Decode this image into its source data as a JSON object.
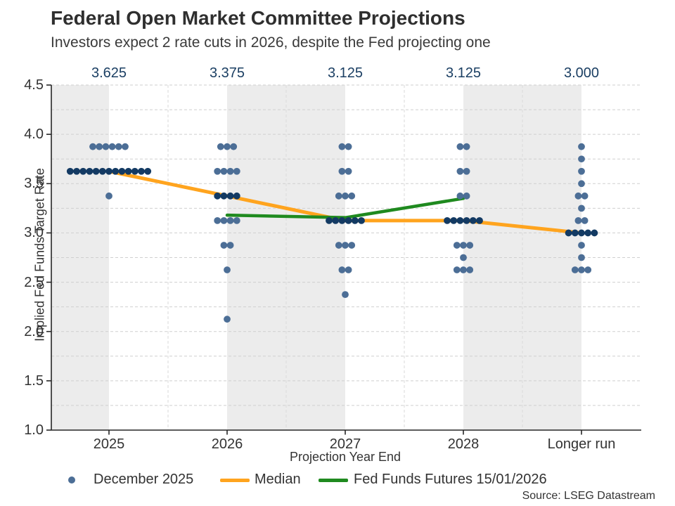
{
  "header": {
    "title": "Federal Open Market Committee Projections",
    "subtitle": "Investors expect 2 rate cuts in 2026, despite the Fed projecting one"
  },
  "source": "Source: LSEG Datastream",
  "colors": {
    "dot": "#4c6e96",
    "dot_median_row": "#133a63",
    "median_line": "#ffa41e",
    "futures_line": "#1f8a1f",
    "top_label_text": "#1b3f63",
    "band": "#ececec",
    "h_grid": "#cfcfcf",
    "v_grid": "#dadada",
    "axis": "#262626"
  },
  "legend": {
    "items": [
      {
        "label": "December 2025",
        "marker": "dot"
      },
      {
        "label": "Median",
        "marker": "line-orange"
      },
      {
        "label": "Fed Funds Futures 15/01/2026",
        "marker": "line-green"
      }
    ]
  },
  "chart_data": {
    "type": "scatter",
    "title": "Federal Open Market Committee Projections",
    "subtitle": "Investors expect 2 rate cuts in 2026, despite the Fed projecting one",
    "xlabel": "Projection Year End",
    "ylabel": "Implied Fed Funds Target Rate",
    "categories": [
      "2025",
      "2026",
      "2027",
      "2028",
      "Longer run"
    ],
    "top_median_labels": [
      "3.625",
      "3.375",
      "3.125",
      "3.125",
      "3.000"
    ],
    "ylim": [
      1.0,
      4.5
    ],
    "yticks": [
      "1.0",
      "1.5",
      "2.0",
      "2.5",
      "3.0",
      "3.5",
      "4.0",
      "4.5"
    ],
    "grid": "horizontal dashed every 0.25; faint vertical dashed at column midpoints; alternating grey column bands",
    "legend_position": "bottom",
    "dot_series_name": "December 2025",
    "dots": [
      {
        "category": "2025",
        "points": [
          {
            "rate": 3.875,
            "count": 6
          },
          {
            "rate": 3.625,
            "count": 13,
            "median": true
          },
          {
            "rate": 3.375,
            "count": 1
          }
        ]
      },
      {
        "category": "2026",
        "points": [
          {
            "rate": 3.875,
            "count": 3
          },
          {
            "rate": 3.625,
            "count": 4
          },
          {
            "rate": 3.375,
            "count": 4,
            "median": true
          },
          {
            "rate": 3.125,
            "count": 4
          },
          {
            "rate": 2.875,
            "count": 2
          },
          {
            "rate": 2.625,
            "count": 1
          },
          {
            "rate": 2.125,
            "count": 1
          }
        ]
      },
      {
        "category": "2027",
        "points": [
          {
            "rate": 3.875,
            "count": 2
          },
          {
            "rate": 3.625,
            "count": 2
          },
          {
            "rate": 3.375,
            "count": 3
          },
          {
            "rate": 3.125,
            "count": 6,
            "median": true
          },
          {
            "rate": 2.875,
            "count": 3
          },
          {
            "rate": 2.625,
            "count": 2
          },
          {
            "rate": 2.375,
            "count": 1
          }
        ]
      },
      {
        "category": "2028",
        "points": [
          {
            "rate": 3.875,
            "count": 2
          },
          {
            "rate": 3.625,
            "count": 2
          },
          {
            "rate": 3.375,
            "count": 2
          },
          {
            "rate": 3.125,
            "count": 6,
            "median": true
          },
          {
            "rate": 2.875,
            "count": 3
          },
          {
            "rate": 2.75,
            "count": 1
          },
          {
            "rate": 2.625,
            "count": 3
          }
        ]
      },
      {
        "category": "Longer run",
        "points": [
          {
            "rate": 3.875,
            "count": 1
          },
          {
            "rate": 3.75,
            "count": 1
          },
          {
            "rate": 3.625,
            "count": 1
          },
          {
            "rate": 3.5,
            "count": 1
          },
          {
            "rate": 3.375,
            "count": 2
          },
          {
            "rate": 3.25,
            "count": 1
          },
          {
            "rate": 3.125,
            "count": 2
          },
          {
            "rate": 3.0,
            "count": 5,
            "median": true
          },
          {
            "rate": 2.875,
            "count": 1
          },
          {
            "rate": 2.75,
            "count": 1
          },
          {
            "rate": 2.625,
            "count": 3
          }
        ]
      }
    ],
    "series": [
      {
        "name": "Median",
        "type": "line",
        "color": "#ffa41e",
        "x": [
          "2025",
          "2026",
          "2027",
          "2028",
          "Longer run"
        ],
        "values": [
          3.625,
          3.375,
          3.125,
          3.125,
          3.0
        ]
      },
      {
        "name": "Fed Funds Futures 15/01/2026",
        "type": "line",
        "color": "#1f8a1f",
        "x": [
          "2026",
          "2027",
          "2028"
        ],
        "values": [
          3.18,
          3.155,
          3.35
        ]
      }
    ]
  }
}
